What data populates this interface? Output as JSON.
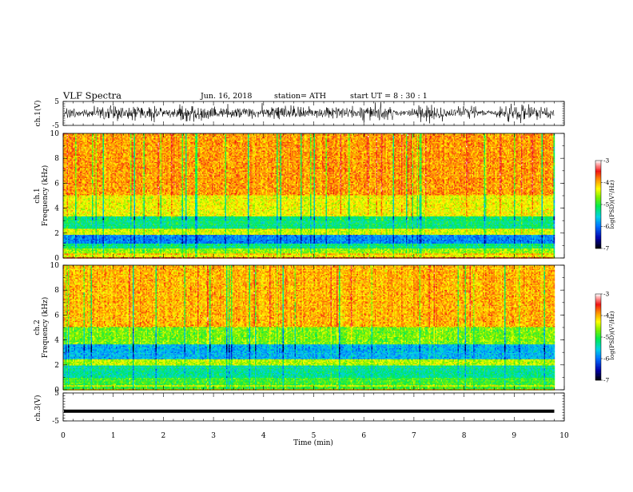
{
  "header": {
    "title": "VLF  Spectra",
    "date": "Jun. 16, 2018",
    "station": "station= ATH",
    "start": "start  UT  =   8  : 30 : 1"
  },
  "chart_data": [
    {
      "type": "line",
      "panel": "ch1-waveform",
      "ylabel": "ch.1(V)",
      "ylim": [
        -5,
        5
      ],
      "yticks": [
        5,
        -5
      ],
      "xlim": [
        0,
        10
      ],
      "data_end_min": 9.8,
      "line_color": "#000000"
    },
    {
      "type": "heatmap",
      "panel": "ch1-spectrogram",
      "ylabel_line1": "ch.1",
      "ylabel_line2": "Frequency  (kHz)",
      "ylim": [
        0,
        10
      ],
      "yticks": [
        0,
        2,
        4,
        6,
        8,
        10
      ],
      "xlim": [
        0,
        10
      ],
      "data_end_min": 9.8,
      "colorbar": {
        "label": "log(PSD)(V²/Hz)",
        "range": [
          -7,
          -3
        ],
        "ticks": [
          -3,
          -4,
          -5,
          -6,
          -7
        ]
      },
      "bands_log_psd": [
        {
          "f_from": 0.0,
          "f_to": 0.3,
          "value": -4.3
        },
        {
          "f_from": 0.3,
          "f_to": 0.8,
          "value": -4.6
        },
        {
          "f_from": 0.8,
          "f_to": 1.2,
          "value": -5.2
        },
        {
          "f_from": 1.2,
          "f_to": 1.9,
          "value": -5.9
        },
        {
          "f_from": 1.9,
          "f_to": 2.3,
          "value": -4.4
        },
        {
          "f_from": 2.3,
          "f_to": 3.3,
          "value": -5.2
        },
        {
          "f_from": 3.3,
          "f_to": 5.0,
          "value": -4.3
        },
        {
          "f_from": 5.0,
          "f_to": 10.0,
          "value": -3.9
        }
      ]
    },
    {
      "type": "heatmap",
      "panel": "ch2-spectrogram",
      "ylabel_line1": "ch.2",
      "ylabel_line2": "Frequency  (kHz)",
      "ylim": [
        0,
        10
      ],
      "yticks": [
        0,
        2,
        4,
        6,
        8,
        10
      ],
      "xlim": [
        0,
        10
      ],
      "data_end_min": 9.8,
      "colorbar": {
        "label": "log(PSD)(V²/Hz)",
        "range": [
          -7,
          -3
        ],
        "ticks": [
          -3,
          -4,
          -5,
          -6,
          -7
        ]
      },
      "bands_log_psd": [
        {
          "f_from": 0.0,
          "f_to": 1.0,
          "value": -4.9
        },
        {
          "f_from": 1.0,
          "f_to": 2.0,
          "value": -5.3
        },
        {
          "f_from": 2.0,
          "f_to": 2.4,
          "value": -4.5
        },
        {
          "f_from": 2.4,
          "f_to": 3.6,
          "value": -5.7
        },
        {
          "f_from": 3.6,
          "f_to": 5.0,
          "value": -4.7
        },
        {
          "f_from": 5.0,
          "f_to": 10.0,
          "value": -4.0
        }
      ]
    },
    {
      "type": "line",
      "panel": "ch3-waveform",
      "ylabel": "ch.3(V)",
      "ylim": [
        -5,
        5
      ],
      "yticks": [
        5,
        -5
      ],
      "xlim": [
        0,
        10
      ],
      "data_end_min": 9.8,
      "level": -1.5,
      "line_color": "#000000"
    }
  ],
  "x_axis": {
    "label": "Time  (min)",
    "ticks": [
      "0",
      "1",
      "2",
      "3",
      "4",
      "5",
      "6",
      "7",
      "8",
      "9",
      "10"
    ]
  }
}
